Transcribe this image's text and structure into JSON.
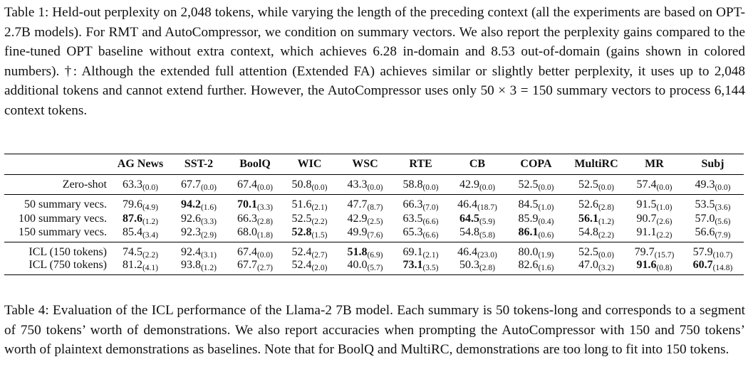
{
  "caption_top": "Table 1: Held-out perplexity on 2,048 tokens, while varying the length of the preceding context (all the experiments are based on OPT-2.7B models). For RMT and AutoCompressor, we condition on summary vectors. We also report the perplexity gains compared to the fine-tuned OPT baseline without extra context, which achieves 6.28 in-domain and 8.53 out-of-domain (gains shown in colored numbers). †: Although the extended full attention (Extended FA) achieves similar or slightly better perplexity, it uses up to 2,048 additional tokens and cannot extend further. However, the AutoCompressor uses only 50 × 3 = 150 summary vectors to process 6,144 context tokens.",
  "caption_bottom": "Table 4: Evaluation of the ICL performance of the Llama-2 7B model. Each summary is 50 tokens-long and corresponds to a segment of 750 tokens’ worth of demonstrations. We also report accuracies when prompting the AutoCompressor with 150 and 750 tokens’ worth of plaintext demonstrations as baselines. Note that for BoolQ and MultiRC, demonstrations are too long to fit into 150 tokens.",
  "watermark": "公众号 · LambdaQ",
  "table": {
    "columns": [
      "AG News",
      "SST-2",
      "BoolQ",
      "WIC",
      "WSC",
      "RTE",
      "CB",
      "COPA",
      "MultiRC",
      "MR",
      "Subj"
    ],
    "groups": [
      [
        {
          "label": "Zero-shot",
          "cells": [
            {
              "v": "63.3",
              "s": "(0.0)"
            },
            {
              "v": "67.7",
              "s": "(0.0)"
            },
            {
              "v": "67.4",
              "s": "(0.0)"
            },
            {
              "v": "50.8",
              "s": "(0.0)"
            },
            {
              "v": "43.3",
              "s": "(0.0)"
            },
            {
              "v": "58.8",
              "s": "(0.0)"
            },
            {
              "v": "42.9",
              "s": "(0.0)"
            },
            {
              "v": "52.5",
              "s": "(0.0)"
            },
            {
              "v": "52.5",
              "s": "(0.0)"
            },
            {
              "v": "57.4",
              "s": "(0.0)"
            },
            {
              "v": "49.3",
              "s": "(0.0)"
            }
          ]
        }
      ],
      [
        {
          "label": "50 summary vecs.",
          "cells": [
            {
              "v": "79.6",
              "s": "(4.9)"
            },
            {
              "v": "94.2",
              "s": "(1.6)",
              "b": true
            },
            {
              "v": "70.1",
              "s": "(3.3)",
              "b": true
            },
            {
              "v": "51.6",
              "s": "(2.1)"
            },
            {
              "v": "47.7",
              "s": "(8.7)"
            },
            {
              "v": "66.3",
              "s": "(7.0)"
            },
            {
              "v": "46.4",
              "s": "(18.7)"
            },
            {
              "v": "84.5",
              "s": "(1.0)"
            },
            {
              "v": "52.6",
              "s": "(2.8)"
            },
            {
              "v": "91.5",
              "s": "(1.0)"
            },
            {
              "v": "53.5",
              "s": "(3.6)"
            }
          ]
        },
        {
          "label": "100 summary vecs.",
          "cells": [
            {
              "v": "87.6",
              "s": "(1.2)",
              "b": true
            },
            {
              "v": "92.6",
              "s": "(3.3)"
            },
            {
              "v": "66.3",
              "s": "(2.8)"
            },
            {
              "v": "52.5",
              "s": "(2.2)"
            },
            {
              "v": "42.9",
              "s": "(2.5)"
            },
            {
              "v": "63.5",
              "s": "(6.6)"
            },
            {
              "v": "64.5",
              "s": "(5.9)",
              "b": true
            },
            {
              "v": "85.9",
              "s": "(0.4)"
            },
            {
              "v": "56.1",
              "s": "(1.2)",
              "b": true
            },
            {
              "v": "90.7",
              "s": "(2.6)"
            },
            {
              "v": "57.0",
              "s": "(5.6)"
            }
          ]
        },
        {
          "label": "150 summary vecs.",
          "cells": [
            {
              "v": "85.4",
              "s": "(3.4)"
            },
            {
              "v": "92.3",
              "s": "(2.9)"
            },
            {
              "v": "68.0",
              "s": "(1.8)"
            },
            {
              "v": "52.8",
              "s": "(1.5)",
              "b": true
            },
            {
              "v": "49.9",
              "s": "(7.6)"
            },
            {
              "v": "65.3",
              "s": "(6.6)"
            },
            {
              "v": "54.8",
              "s": "(5.8)"
            },
            {
              "v": "86.1",
              "s": "(0.6)",
              "b": true
            },
            {
              "v": "54.8",
              "s": "(2.2)"
            },
            {
              "v": "91.1",
              "s": "(2.2)"
            },
            {
              "v": "56.6",
              "s": "(7.9)"
            }
          ]
        }
      ],
      [
        {
          "label": "ICL (150 tokens)",
          "cells": [
            {
              "v": "74.5",
              "s": "(2.2)"
            },
            {
              "v": "92.4",
              "s": "(3.1)"
            },
            {
              "v": "67.4",
              "s": "(0.0)"
            },
            {
              "v": "52.4",
              "s": "(2.7)"
            },
            {
              "v": "51.8",
              "s": "(6.9)",
              "b": true
            },
            {
              "v": "69.1",
              "s": "(2.1)"
            },
            {
              "v": "46.4",
              "s": "(23.0)"
            },
            {
              "v": "80.0",
              "s": "(1.9)"
            },
            {
              "v": "52.5",
              "s": "(0.0)"
            },
            {
              "v": "79.7",
              "s": "(15.7)"
            },
            {
              "v": "57.9",
              "s": "(10.7)"
            }
          ]
        },
        {
          "label": "ICL (750 tokens)",
          "cells": [
            {
              "v": "81.2",
              "s": "(4.1)"
            },
            {
              "v": "93.8",
              "s": "(1.2)"
            },
            {
              "v": "67.7",
              "s": "(2.7)"
            },
            {
              "v": "52.4",
              "s": "(2.0)"
            },
            {
              "v": "40.0",
              "s": "(5.7)"
            },
            {
              "v": "73.1",
              "s": "(3.5)",
              "b": true
            },
            {
              "v": "50.3",
              "s": "(2.8)"
            },
            {
              "v": "82.6",
              "s": "(1.6)"
            },
            {
              "v": "47.0",
              "s": "(3.2)"
            },
            {
              "v": "91.6",
              "s": "(0.8)",
              "b": true
            },
            {
              "v": "60.7",
              "s": "(14.8)",
              "b": true
            }
          ]
        }
      ]
    ]
  }
}
